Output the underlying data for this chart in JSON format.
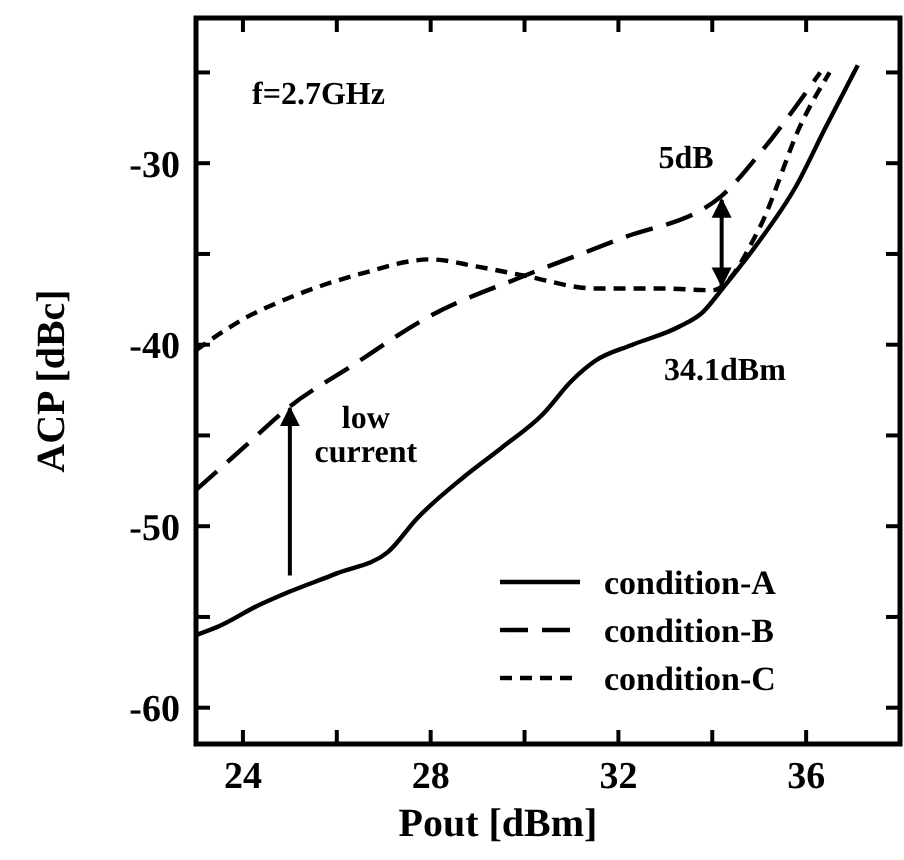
{
  "chart_data": {
    "type": "line",
    "xlabel": "Pout [dBm]",
    "ylabel": "ACP [dBc]",
    "xlim": [
      23,
      38
    ],
    "ylim": [
      -62,
      -22
    ],
    "xticks": [
      24,
      {
        "value": 26,
        "label": null
      },
      28,
      {
        "value": 30,
        "label": null
      },
      32,
      {
        "value": 34,
        "label": null
      },
      36
    ],
    "yticks": [
      {
        "value": -55,
        "label": null
      },
      -60,
      -50,
      {
        "value": -45,
        "label": null
      },
      -40,
      {
        "value": -35,
        "label": null
      },
      -30,
      {
        "value": -25,
        "label": null
      }
    ],
    "grid": false,
    "legend": "bottom right",
    "marker": "none",
    "series": [
      {
        "name": "condition-A",
        "color": "#000000",
        "line_style": "solid",
        "x": [
          23,
          23.5,
          24.3,
          25,
          26,
          27.1,
          27.7,
          28.7,
          29.5,
          30.4,
          31,
          31.5,
          32.3,
          33.3,
          33.8,
          34.25,
          35,
          35.8,
          36.4,
          37.1
        ],
        "values": [
          -56,
          -55.5,
          -54.4,
          -53.6,
          -52.6,
          -51.4,
          -49.6,
          -47.3,
          -45.7,
          -43.8,
          -42,
          -40.9,
          -40,
          -39,
          -38.2,
          -36.8,
          -34.3,
          -31.2,
          -28.1,
          -24.6
        ]
      },
      {
        "name": "condition-B",
        "color": "#000000",
        "line_style": "dashed",
        "x": [
          23,
          24,
          25,
          26.3,
          28,
          30,
          32,
          34.2,
          35,
          36.3
        ],
        "values": [
          -48,
          -45.7,
          -43.4,
          -41.2,
          -38.4,
          -36.2,
          -34.2,
          -31.8,
          -29.5,
          -25
        ]
      },
      {
        "name": "condition-C",
        "color": "#000000",
        "line_style": "dotted",
        "x": [
          23,
          24,
          25.1,
          26.5,
          28,
          29,
          30,
          31.5,
          32.9,
          34,
          35,
          35.9,
          36.5
        ],
        "values": [
          -40.3,
          -38.6,
          -37.3,
          -36.1,
          -35.3,
          -35.7,
          -36.2,
          -36.9,
          -36.9,
          -37,
          -33.6,
          -27.8,
          -25
        ]
      }
    ],
    "annotations": [
      "f=2.7GHz",
      {
        "text": "5dB",
        "x": 34.2,
        "y": -31.8
      },
      {
        "text": "low current",
        "x": 25,
        "y": -43.5
      },
      {
        "text": "34.1dBm",
        "x": 34.1,
        "y": -37
      }
    ]
  }
}
